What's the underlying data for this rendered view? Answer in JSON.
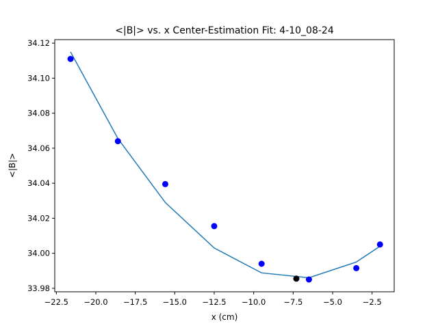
{
  "chart_data": {
    "type": "scatter",
    "title": "<|B|> vs. x Center-Estimation Fit: 4-10_08-24",
    "xlabel": "x (cm)",
    "ylabel": "<|B|>",
    "xlim": [
      -22.6,
      -1.1
    ],
    "ylim": [
      33.978,
      34.122
    ],
    "xticks": [
      -22.5,
      -20.0,
      -17.5,
      -15.0,
      -12.5,
      -10.0,
      -7.5,
      -5.0,
      -2.5
    ],
    "xtick_labels": [
      "−22.5",
      "−20.0",
      "−17.5",
      "−15.0",
      "−12.5",
      "−10.0",
      "−7.5",
      "−5.0",
      "−2.5"
    ],
    "yticks": [
      33.98,
      34.0,
      34.02,
      34.04,
      34.06,
      34.08,
      34.1,
      34.12
    ],
    "ytick_labels": [
      "33.98",
      "34.00",
      "34.02",
      "34.04",
      "34.06",
      "34.08",
      "34.10",
      "34.12"
    ],
    "grid": false,
    "series": [
      {
        "kind": "scatter",
        "color": "#0000ff",
        "x": [
          -21.6,
          -18.6,
          -15.6,
          -12.5,
          -9.5,
          -6.5,
          -3.5,
          -2.0
        ],
        "y": [
          34.111,
          34.064,
          34.0395,
          34.0155,
          33.994,
          33.985,
          33.9915,
          34.005
        ]
      },
      {
        "kind": "scatter",
        "color": "#000000",
        "x": [
          -7.3
        ],
        "y": [
          33.9855
        ]
      },
      {
        "kind": "line",
        "color": "#1f77b4",
        "x": [
          -21.6,
          -18.6,
          -15.6,
          -12.5,
          -9.5,
          -6.5,
          -3.5,
          -2.0
        ],
        "y": [
          34.115,
          34.0655,
          34.029,
          34.003,
          33.9888,
          33.986,
          33.995,
          34.004
        ]
      }
    ]
  }
}
